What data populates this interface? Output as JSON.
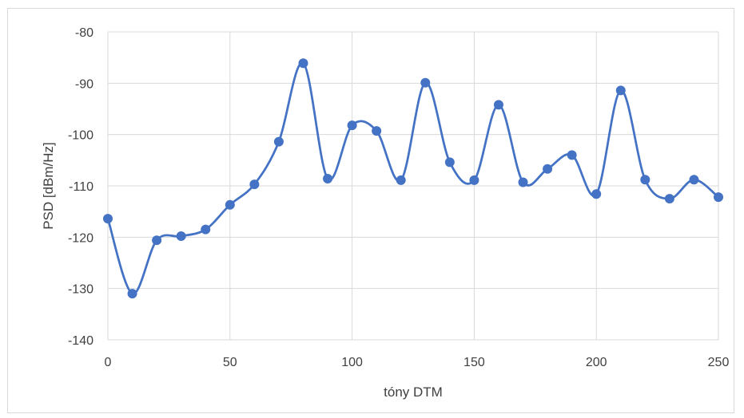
{
  "chart_data": {
    "type": "line",
    "title": "",
    "xlabel": "tóny DTM",
    "ylabel": "PSD [dBm/Hz]",
    "xlim": [
      0,
      250
    ],
    "ylim": [
      -140,
      -80
    ],
    "xticks": [
      0,
      50,
      100,
      150,
      200,
      250
    ],
    "yticks": [
      -80,
      -90,
      -100,
      -110,
      -120,
      -130,
      -140
    ],
    "xtick_labels": [
      "0",
      "50",
      "100",
      "150",
      "200",
      "250"
    ],
    "ytick_labels": [
      "-80",
      "-90",
      "-100",
      "-110",
      "-120",
      "-130",
      "-140"
    ],
    "grid": true,
    "legend": "none",
    "smooth": true,
    "series": [
      {
        "color": "#4472c4",
        "marker": "circle",
        "x": [
          0,
          10,
          20,
          30,
          40,
          50,
          60,
          70,
          80,
          90,
          100,
          110,
          120,
          130,
          140,
          150,
          160,
          170,
          180,
          190,
          200,
          210,
          220,
          230,
          240,
          250
        ],
        "y": [
          -116.4,
          -131.0,
          -120.6,
          -119.8,
          -118.5,
          -113.7,
          -109.7,
          -101.4,
          -86.1,
          -108.6,
          -98.2,
          -99.3,
          -108.9,
          -89.9,
          -105.4,
          -108.9,
          -94.2,
          -109.3,
          -106.7,
          -104.0,
          -111.6,
          -91.4,
          -108.8,
          -112.5,
          -108.8,
          -112.2
        ]
      }
    ]
  }
}
